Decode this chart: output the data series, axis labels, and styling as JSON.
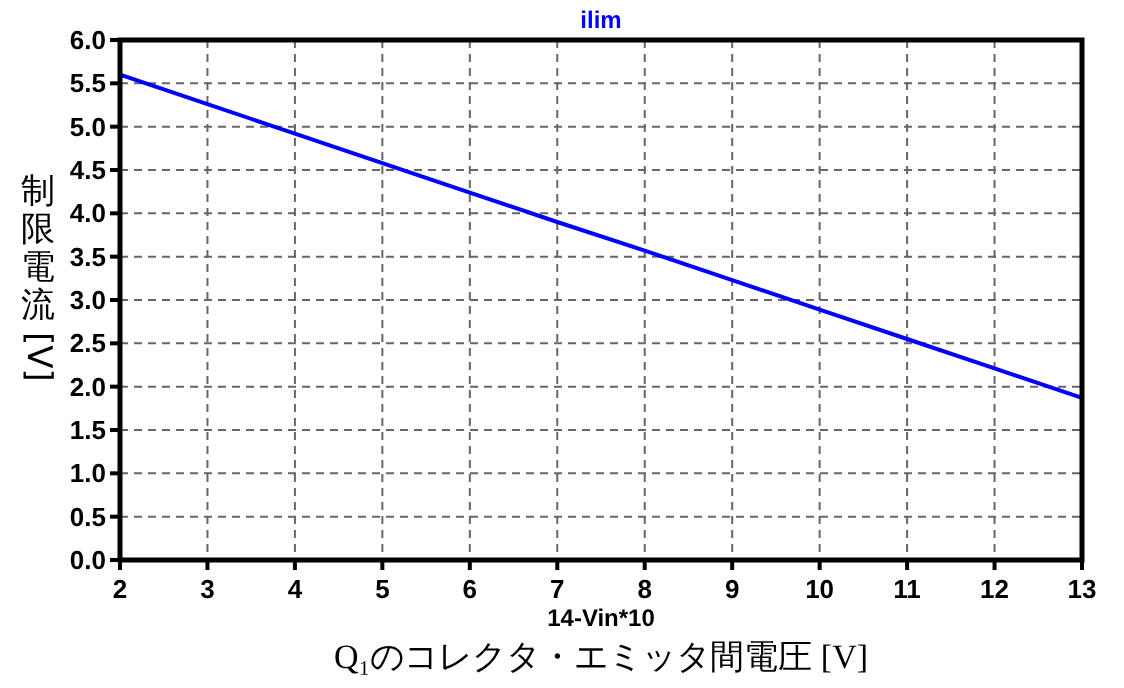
{
  "chart_data": {
    "type": "line",
    "title": "ilim",
    "xlabel": "14-Vin*10",
    "ylabel": "制限電流 [V]",
    "annotations": [
      "Q₁のコレクタ・エミッタ間電圧 [V]"
    ],
    "x": [
      2,
      3,
      4,
      5,
      6,
      7,
      8,
      9,
      10,
      11,
      12,
      13
    ],
    "series": [
      {
        "color": "#0000ff",
        "values": [
          5.6,
          5.26,
          4.92,
          4.58,
          4.24,
          3.9,
          3.57,
          3.23,
          2.89,
          2.55,
          2.21,
          1.87
        ]
      }
    ],
    "xlim": [
      2,
      13
    ],
    "xticks": [
      2,
      3,
      4,
      5,
      6,
      7,
      8,
      9,
      10,
      11,
      12,
      13
    ],
    "ylim": [
      0,
      6
    ],
    "yticks": [
      {
        "value": 0,
        "label": "0.0"
      },
      {
        "value": 0.5,
        "label": "0.5"
      },
      {
        "value": 1,
        "label": "1.0"
      },
      {
        "value": 1.5,
        "label": "1.5"
      },
      {
        "value": 2,
        "label": "2.0"
      },
      {
        "value": 2.5,
        "label": "2.5"
      },
      {
        "value": 3,
        "label": "3.0"
      },
      {
        "value": 3.5,
        "label": "3.5"
      },
      {
        "value": 4,
        "label": "4.0"
      },
      {
        "value": 4.5,
        "label": "4.5"
      },
      {
        "value": 5,
        "label": "5.0"
      },
      {
        "value": 5.5,
        "label": "5.5"
      },
      {
        "value": 6,
        "label": "6.0"
      }
    ],
    "grid": true,
    "line_style": "solid",
    "marker": "none"
  }
}
